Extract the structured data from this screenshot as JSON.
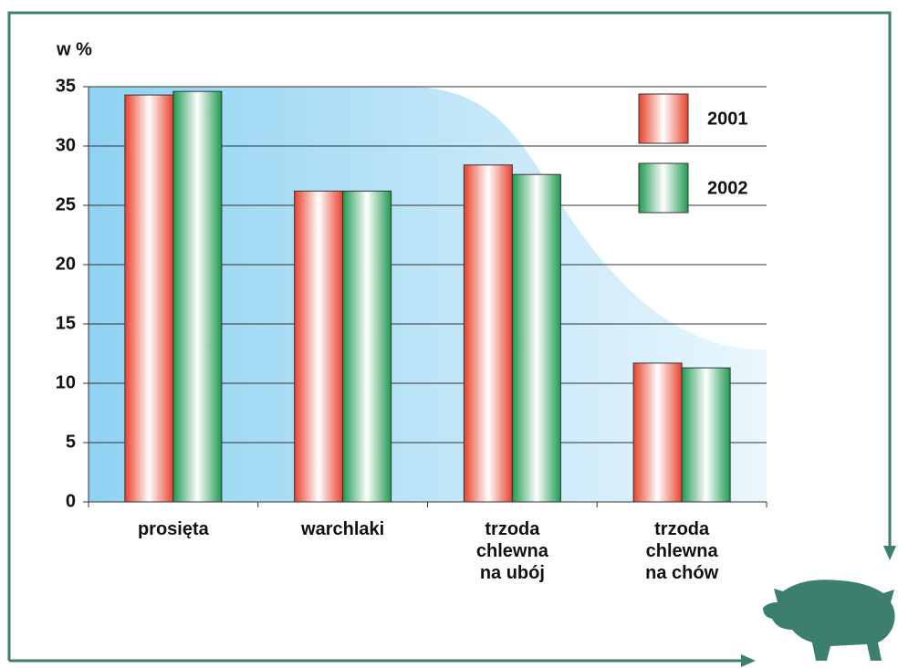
{
  "chart_data": {
    "type": "bar",
    "y_label": "w %",
    "categories": [
      "prosięta",
      "warchlaki",
      "trzoda\nchlewna\nna ubój",
      "trzoda\nchlewna\nna chów"
    ],
    "series": [
      {
        "name": "2001",
        "color": "#e8412c",
        "values": [
          34.3,
          26.2,
          28.4,
          11.7
        ]
      },
      {
        "name": "2002",
        "color": "#1f9a52",
        "values": [
          34.6,
          26.2,
          27.6,
          11.3
        ]
      }
    ],
    "ylim": [
      0,
      35
    ],
    "yticks": [
      0,
      5,
      10,
      15,
      20,
      25,
      30,
      35
    ],
    "grid": true
  }
}
